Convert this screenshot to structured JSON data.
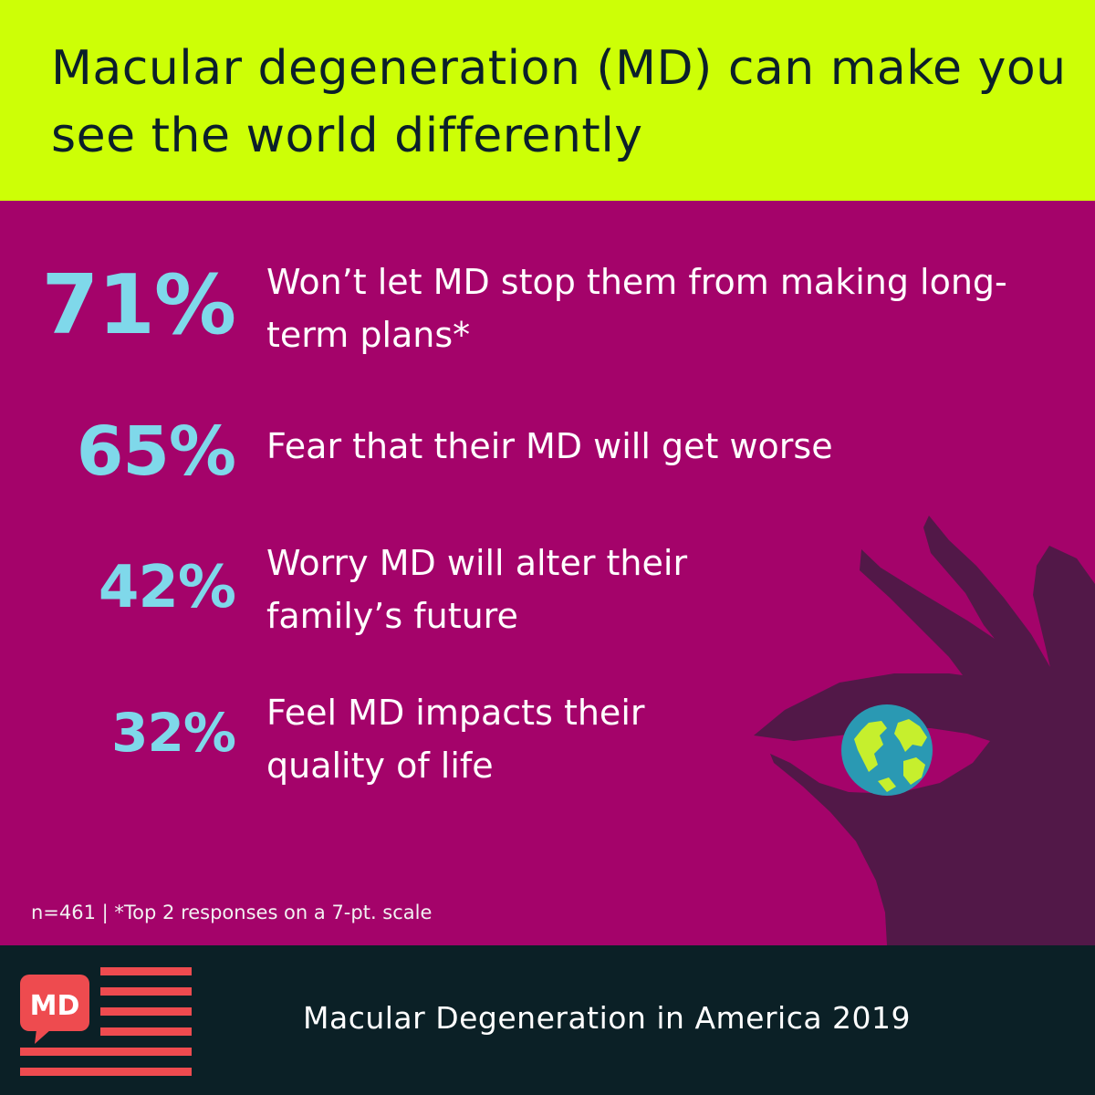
{
  "title": "Macular degeneration (MD) can make you see the world differently",
  "stats": [
    {
      "value": "71%",
      "text": "Won’t let MD stop them from making long-term plans*"
    },
    {
      "value": "65%",
      "text": "Fear that their MD will get worse"
    },
    {
      "value": "42%",
      "text": "Worry MD will alter their family’s future"
    },
    {
      "value": "32%",
      "text": "Feel MD impacts their quality of life"
    }
  ],
  "footnote": "n=461 | *Top 2 responses on a 7-pt. scale",
  "footer": {
    "logo_text": "MD",
    "report_title": "Macular Degeneration in America 2019"
  },
  "illustration": {
    "icons": [
      "hand-icon",
      "globe-icon"
    ]
  },
  "colors": {
    "header_bg": "#cdff06",
    "main_bg": "#a4036a",
    "percent": "#7fd8ea",
    "footer_bg": "#0b2026",
    "logo_red": "#ee4b4f",
    "hand": "#521848"
  }
}
